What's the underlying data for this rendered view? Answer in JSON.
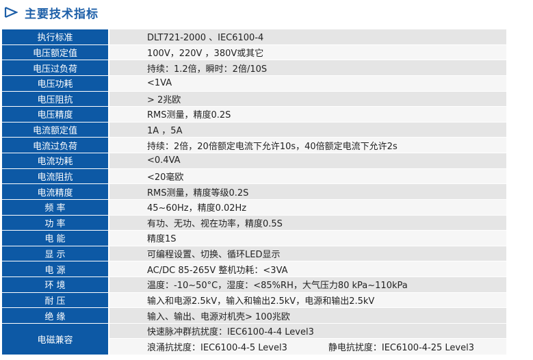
{
  "header": {
    "title": "主要技术指标",
    "icon": "triangle-arrow-icon",
    "accent": "#1d5fa8"
  },
  "colors": {
    "label_bg": "#0d59a5",
    "row_odd": "#e5e5e5",
    "row_even": "#f6f6f6"
  },
  "rows": [
    {
      "label": "执行标准",
      "value": "DLT721-2000 、IEC6100-4"
    },
    {
      "label": "电压额定值",
      "value": "100V，220V ，380V或其它"
    },
    {
      "label": "电压过负荷",
      "value": "持续：1.2倍，瞬时：2倍/10S"
    },
    {
      "label": "电压功耗",
      "value": "<1VA"
    },
    {
      "label": "电压阻抗",
      "value": "> 2兆欧"
    },
    {
      "label": "电压精度",
      "value": "RMS测量，精度0.2S"
    },
    {
      "label": "电流额定值",
      "value": "1A ，5A"
    },
    {
      "label": "电流过负荷",
      "value": "持续：2倍，20倍额定电流下允许10s，40倍额定电流下允许2s"
    },
    {
      "label": "电流功耗",
      "value": "<0.4VA"
    },
    {
      "label": "电流阻抗",
      "value": "<20毫欧"
    },
    {
      "label": "电流精度",
      "value": "RMS测量，精度等级0.2S"
    },
    {
      "label": "频 率",
      "value": "45~60Hz，精度0.02Hz"
    },
    {
      "label": "功 率",
      "value": "有功、无功、视在功率，精度0.5S"
    },
    {
      "label": "电 能",
      "value": "精度1S"
    },
    {
      "label": "显 示",
      "value": "可编程设置、切换、循环LED显示"
    },
    {
      "label": "电 源",
      "value": "AC/DC 85-265V 整机功耗：<3VA"
    },
    {
      "label": "环 境",
      "value": "温度：-10~50°C，湿度：<85%RH，大气压力80 kPa~110kPa"
    },
    {
      "label": "耐 压",
      "value": "输入和电源2.5kV，输入和输出2.5kV，电源和输出2.5kV"
    },
    {
      "label": "绝 缘",
      "value": "输入、输出、电源对机壳> 100兆欧"
    }
  ],
  "emc": {
    "label": "电磁兼容",
    "line1": "快速脉冲群抗扰度：IEC6100-4-4 Level3",
    "line2a": "浪涌抗扰度：IEC6100-4-5 Level3",
    "line2b": "静电抗扰度：IEC6100-4-25 Level3"
  }
}
